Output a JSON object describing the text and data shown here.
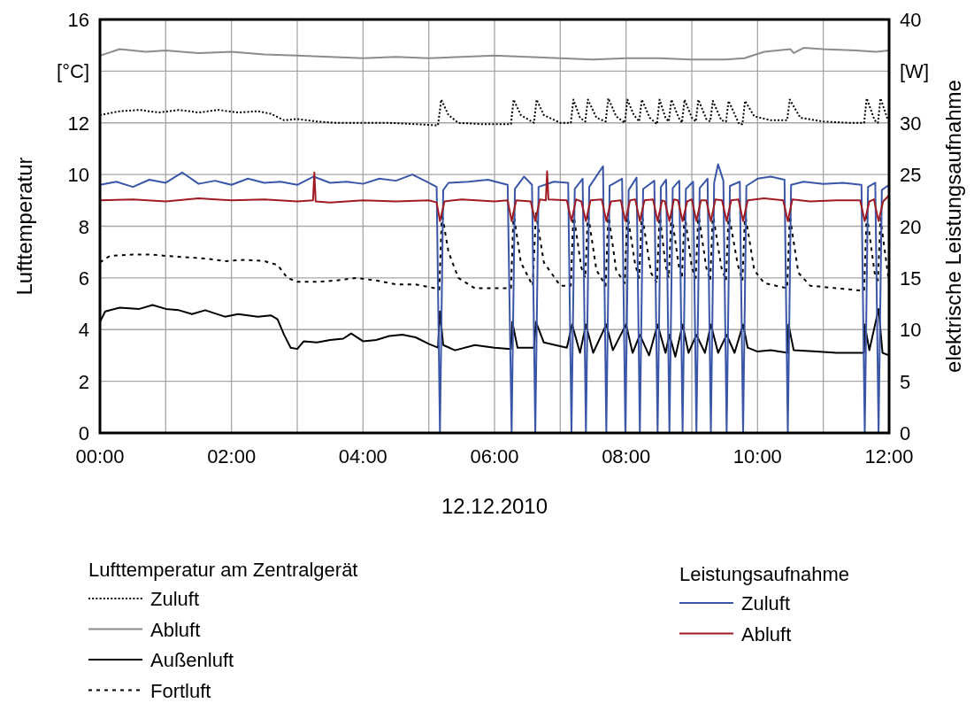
{
  "chart_data": {
    "type": "line",
    "xlabel": "12.12.2010",
    "ylabel": "Lufttemperatur",
    "y2label": "elektrische Leistungsaufnahme",
    "legend_title": "Lufttemperatur am Zentralgerät",
    "annotations": [
      "Leistungsaufnahme"
    ],
    "legend": "bottom",
    "grid": true,
    "marker": "none",
    "xlim": [
      0,
      12
    ],
    "xticks": [
      {
        "value": 0,
        "label": "00:00"
      },
      {
        "value": 1,
        "label": null
      },
      {
        "value": 2,
        "label": "02:00"
      },
      {
        "value": 3,
        "label": null
      },
      {
        "value": 4,
        "label": "04:00"
      },
      {
        "value": 5,
        "label": null
      },
      {
        "value": 6,
        "label": "06:00"
      },
      {
        "value": 7,
        "label": null
      },
      {
        "value": 8,
        "label": "08:00"
      },
      {
        "value": 9,
        "label": null
      },
      {
        "value": 10,
        "label": "10:00"
      },
      {
        "value": 11,
        "label": null
      },
      {
        "value": 12,
        "label": "12:00"
      }
    ],
    "ylim": [
      0,
      16
    ],
    "yticks": [
      0,
      2,
      4,
      6,
      8,
      10,
      12,
      {
        "value": 14,
        "label": "[°C]"
      },
      16
    ],
    "y2lim": [
      0,
      40
    ],
    "y2ticks": [
      0,
      5,
      10,
      15,
      20,
      25,
      30,
      {
        "value": 35,
        "label": "[W]"
      },
      40
    ],
    "series": [
      {
        "name": "Zuluft",
        "color": "#000000",
        "line_style": "dotted",
        "x": [
          0,
          0.3,
          0.6,
          0.9,
          1.2,
          1.5,
          1.8,
          2.1,
          2.4,
          2.6,
          2.8,
          3.0,
          3.3,
          3.6,
          4.0,
          4.4,
          4.8,
          5.14,
          5.19,
          5.3,
          5.45,
          5.8,
          6.25,
          6.29,
          6.4,
          6.6,
          6.64,
          6.75,
          7.0,
          7.16,
          7.2,
          7.3,
          7.38,
          7.42,
          7.55,
          7.69,
          7.73,
          7.85,
          7.98,
          8.02,
          8.12,
          8.2,
          8.24,
          8.36,
          8.47,
          8.51,
          8.6,
          8.65,
          8.69,
          8.8,
          8.85,
          8.89,
          9.0,
          9.06,
          9.1,
          9.22,
          9.28,
          9.32,
          9.45,
          9.52,
          9.56,
          9.72,
          9.77,
          9.81,
          9.95,
          10.2,
          10.45,
          10.49,
          10.65,
          11.0,
          11.4,
          11.62,
          11.66,
          11.78,
          11.83,
          11.87,
          11.97,
          12
        ],
        "values": [
          12.3,
          12.45,
          12.5,
          12.4,
          12.5,
          12.4,
          12.5,
          12.4,
          12.45,
          12.35,
          12.1,
          12.15,
          12.05,
          12.0,
          12.0,
          12.0,
          11.95,
          11.9,
          12.9,
          12.3,
          12.0,
          11.95,
          11.95,
          12.9,
          12.3,
          12.0,
          12.9,
          12.3,
          12.0,
          12.0,
          12.9,
          12.2,
          12.05,
          12.9,
          12.2,
          12.05,
          12.95,
          12.25,
          12.0,
          12.9,
          12.3,
          12.05,
          12.9,
          12.2,
          11.95,
          12.9,
          12.2,
          12.05,
          12.9,
          12.2,
          12.0,
          12.9,
          12.2,
          12.05,
          12.9,
          12.15,
          12.05,
          12.85,
          12.1,
          12.05,
          12.85,
          11.95,
          11.95,
          12.85,
          12.25,
          12.1,
          12.1,
          12.9,
          12.2,
          12.05,
          12.0,
          12.0,
          12.95,
          12.1,
          12.0,
          12.95,
          12.2,
          12.15
        ]
      },
      {
        "name": "Abluft",
        "color": "#8c8c8c",
        "line_style": "solid",
        "x": [
          0,
          0.3,
          0.7,
          1.0,
          1.5,
          2.0,
          2.5,
          3.0,
          3.5,
          4.0,
          4.5,
          5.0,
          5.5,
          6.0,
          6.5,
          7.0,
          7.5,
          8.0,
          8.5,
          9.0,
          9.5,
          9.8,
          10.1,
          10.3,
          10.5,
          10.55,
          10.7,
          11.0,
          11.5,
          11.8,
          12
        ],
        "values": [
          14.6,
          14.85,
          14.75,
          14.8,
          14.7,
          14.75,
          14.65,
          14.6,
          14.55,
          14.5,
          14.55,
          14.5,
          14.55,
          14.6,
          14.55,
          14.5,
          14.45,
          14.5,
          14.5,
          14.45,
          14.45,
          14.5,
          14.75,
          14.8,
          14.85,
          14.7,
          14.9,
          14.85,
          14.8,
          14.75,
          14.8
        ]
      },
      {
        "name": "Außenluft",
        "color": "#000000",
        "line_style": "solid",
        "x": [
          0,
          0.08,
          0.3,
          0.6,
          0.8,
          1.0,
          1.2,
          1.4,
          1.6,
          1.9,
          2.1,
          2.4,
          2.6,
          2.7,
          2.8,
          2.9,
          3.0,
          3.1,
          3.3,
          3.5,
          3.7,
          3.82,
          4.0,
          4.2,
          4.4,
          4.6,
          4.8,
          5.0,
          5.14,
          5.17,
          5.22,
          5.4,
          5.7,
          6.0,
          6.25,
          6.27,
          6.35,
          6.6,
          6.63,
          6.75,
          7.1,
          7.18,
          7.3,
          7.39,
          7.5,
          7.7,
          7.8,
          8.0,
          8.1,
          8.21,
          8.35,
          8.48,
          8.6,
          8.66,
          8.75,
          8.86,
          8.95,
          9.07,
          9.2,
          9.29,
          9.4,
          9.53,
          9.65,
          9.78,
          9.85,
          10.0,
          10.2,
          10.46,
          10.47,
          10.55,
          10.9,
          11.2,
          11.62,
          11.63,
          11.7,
          11.84,
          11.9,
          12
        ],
        "values": [
          4.3,
          4.7,
          4.85,
          4.8,
          4.95,
          4.8,
          4.75,
          4.6,
          4.75,
          4.5,
          4.6,
          4.5,
          4.55,
          4.4,
          3.8,
          3.3,
          3.25,
          3.55,
          3.5,
          3.6,
          3.65,
          3.85,
          3.55,
          3.6,
          3.75,
          3.8,
          3.7,
          3.45,
          3.3,
          4.7,
          3.4,
          3.2,
          3.4,
          3.3,
          3.25,
          4.3,
          3.3,
          3.3,
          4.3,
          3.5,
          3.3,
          4.2,
          3.1,
          4.2,
          3.1,
          4.2,
          3.2,
          4.2,
          3.1,
          3.8,
          3.0,
          4.2,
          3.1,
          3.8,
          2.95,
          4.2,
          3.1,
          3.8,
          3.1,
          4.2,
          3.1,
          3.8,
          3.1,
          4.2,
          3.3,
          3.15,
          3.2,
          3.1,
          4.2,
          3.2,
          3.15,
          3.1,
          3.1,
          4.2,
          3.2,
          4.8,
          3.1,
          3.0
        ]
      },
      {
        "name": "Fortluft",
        "color": "#000000",
        "line_style": "dashed",
        "x": [
          0,
          0.15,
          0.5,
          0.8,
          1.0,
          1.3,
          1.6,
          1.9,
          2.2,
          2.5,
          2.7,
          2.85,
          3.0,
          3.3,
          3.6,
          3.9,
          4.2,
          4.5,
          4.8,
          5.1,
          5.16,
          5.2,
          5.3,
          5.45,
          5.7,
          6.0,
          6.25,
          6.29,
          6.4,
          6.58,
          6.63,
          6.75,
          7.0,
          7.16,
          7.2,
          7.32,
          7.38,
          7.42,
          7.55,
          7.69,
          7.73,
          7.85,
          7.98,
          8.02,
          8.14,
          8.2,
          8.24,
          8.38,
          8.47,
          8.51,
          8.6,
          8.65,
          8.69,
          8.8,
          8.85,
          8.89,
          9.0,
          9.06,
          9.1,
          9.22,
          9.28,
          9.32,
          9.45,
          9.52,
          9.56,
          9.7,
          9.77,
          9.81,
          9.95,
          10.1,
          10.45,
          10.49,
          10.62,
          10.8,
          11.2,
          11.62,
          11.66,
          11.78,
          11.83,
          11.87,
          12
        ],
        "values": [
          6.6,
          6.85,
          6.9,
          6.9,
          6.85,
          6.8,
          6.75,
          6.65,
          6.7,
          6.65,
          6.5,
          6.0,
          5.85,
          5.85,
          5.9,
          6.0,
          5.9,
          5.75,
          5.75,
          5.6,
          5.55,
          8.5,
          7.0,
          6.0,
          5.6,
          5.6,
          5.6,
          8.5,
          6.6,
          5.7,
          8.5,
          6.6,
          5.7,
          5.7,
          8.5,
          6.4,
          6.0,
          8.5,
          6.3,
          5.7,
          8.5,
          6.3,
          5.8,
          8.5,
          6.5,
          6.0,
          8.5,
          6.2,
          5.8,
          8.5,
          6.5,
          6.0,
          8.5,
          6.5,
          6.0,
          8.5,
          6.4,
          6.0,
          8.5,
          6.4,
          5.9,
          8.5,
          6.4,
          5.9,
          8.5,
          6.5,
          5.9,
          8.5,
          6.3,
          5.8,
          5.6,
          8.4,
          6.2,
          5.7,
          5.6,
          5.5,
          8.5,
          6.2,
          5.9,
          8.3,
          5.8
        ]
      },
      {
        "name": "Zuluft",
        "color": "#3a56a8",
        "axis": "y2",
        "line_style": "solid",
        "x": [
          0,
          0.25,
          0.5,
          0.75,
          1,
          1.25,
          1.5,
          1.75,
          2,
          2.25,
          2.5,
          2.75,
          3,
          3.25,
          3.5,
          3.75,
          4,
          4.25,
          4.5,
          4.75,
          5.0,
          5.12,
          5.17,
          5.22,
          5.3,
          5.6,
          5.9,
          6.2,
          6.26,
          6.31,
          6.45,
          6.57,
          6.62,
          6.67,
          6.9,
          7.12,
          7.17,
          7.22,
          7.34,
          7.39,
          7.44,
          7.65,
          7.7,
          7.75,
          7.94,
          7.99,
          8.04,
          8.16,
          8.21,
          8.26,
          8.43,
          8.48,
          8.53,
          8.61,
          8.66,
          8.71,
          8.81,
          8.86,
          8.91,
          9.02,
          9.07,
          9.12,
          9.24,
          9.29,
          9.34,
          9.4,
          9.48,
          9.53,
          9.58,
          9.73,
          9.78,
          9.83,
          10.0,
          10.2,
          10.41,
          10.46,
          10.51,
          10.7,
          11.0,
          11.3,
          11.58,
          11.63,
          11.68,
          11.79,
          11.84,
          11.89,
          12
        ],
        "values": [
          24.0,
          24.3,
          23.8,
          24.5,
          24.2,
          25.2,
          24.1,
          24.4,
          24.0,
          24.6,
          24.2,
          24.3,
          24.0,
          24.8,
          24.2,
          24.3,
          24.1,
          24.6,
          24.4,
          25.0,
          24.2,
          23.8,
          0,
          23.5,
          24.2,
          24.3,
          24.5,
          24.0,
          0,
          23.6,
          24.8,
          24.0,
          0,
          23.8,
          24.3,
          24.2,
          0,
          23.6,
          24.6,
          0,
          23.8,
          25.8,
          0,
          23.9,
          24.6,
          0,
          23.5,
          24.7,
          0,
          23.6,
          24.4,
          0,
          23.8,
          24.5,
          0,
          23.7,
          24.4,
          0,
          23.6,
          24.3,
          0,
          23.7,
          24.6,
          0,
          24.2,
          26.0,
          24.4,
          0,
          23.9,
          24.3,
          0,
          23.9,
          24.6,
          24.8,
          24.5,
          0,
          24.0,
          24.3,
          24.1,
          24.2,
          24.0,
          0,
          23.8,
          24.2,
          0,
          23.5,
          24.0
        ]
      },
      {
        "name": "Abluft",
        "color": "#a01c22",
        "axis": "y2",
        "line_style": "solid",
        "x": [
          0,
          0.5,
          1,
          1.5,
          2,
          2.5,
          3,
          3.24,
          3.26,
          3.28,
          3.5,
          4,
          4.5,
          5.0,
          5.12,
          5.17,
          5.24,
          5.5,
          6.0,
          6.2,
          6.26,
          6.33,
          6.55,
          6.62,
          6.69,
          6.78,
          6.8,
          6.82,
          7.1,
          7.17,
          7.24,
          7.32,
          7.39,
          7.46,
          7.63,
          7.7,
          7.77,
          7.92,
          7.99,
          8.06,
          8.14,
          8.21,
          8.28,
          8.41,
          8.48,
          8.55,
          8.59,
          8.66,
          8.73,
          8.79,
          8.86,
          8.93,
          9.0,
          9.07,
          9.14,
          9.22,
          9.29,
          9.36,
          9.46,
          9.53,
          9.6,
          9.71,
          9.78,
          9.85,
          10.1,
          10.39,
          10.46,
          10.53,
          10.8,
          11.2,
          11.56,
          11.63,
          11.7,
          11.77,
          11.84,
          11.91,
          12
        ],
        "values": [
          22.5,
          22.6,
          22.4,
          22.7,
          22.5,
          22.6,
          22.4,
          22.5,
          25.2,
          22.4,
          22.3,
          22.5,
          22.4,
          22.5,
          22.3,
          20.5,
          22.4,
          22.6,
          22.4,
          22.5,
          20.5,
          22.5,
          22.4,
          20.5,
          22.6,
          22.5,
          25.3,
          22.6,
          22.5,
          20.5,
          22.6,
          22.4,
          20.5,
          22.5,
          22.6,
          20.5,
          22.4,
          22.5,
          20.5,
          22.5,
          22.6,
          20.5,
          22.5,
          22.6,
          20.5,
          22.5,
          22.4,
          20.5,
          22.6,
          22.5,
          20.5,
          22.4,
          22.6,
          20.5,
          22.5,
          22.5,
          20.5,
          22.6,
          22.5,
          20.5,
          22.5,
          22.6,
          20.5,
          22.5,
          22.7,
          22.5,
          20.5,
          22.6,
          22.4,
          22.5,
          22.5,
          20.5,
          22.4,
          22.6,
          20.5,
          22.4,
          23.0
        ]
      }
    ]
  }
}
